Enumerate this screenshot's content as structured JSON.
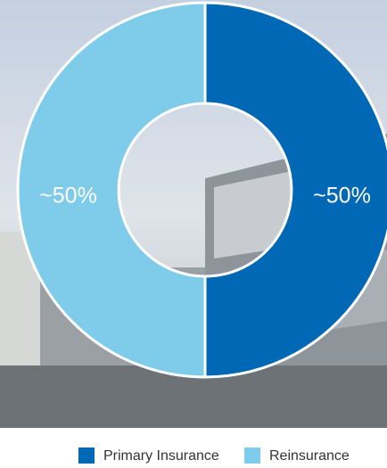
{
  "chart_data": {
    "type": "donut",
    "categories": [
      "Primary Insurance",
      "Reinsurance"
    ],
    "values": [
      50,
      50
    ],
    "value_labels": [
      "~50%",
      "~50%"
    ],
    "colors": [
      "#0068b4",
      "#7fcbea"
    ]
  }
}
